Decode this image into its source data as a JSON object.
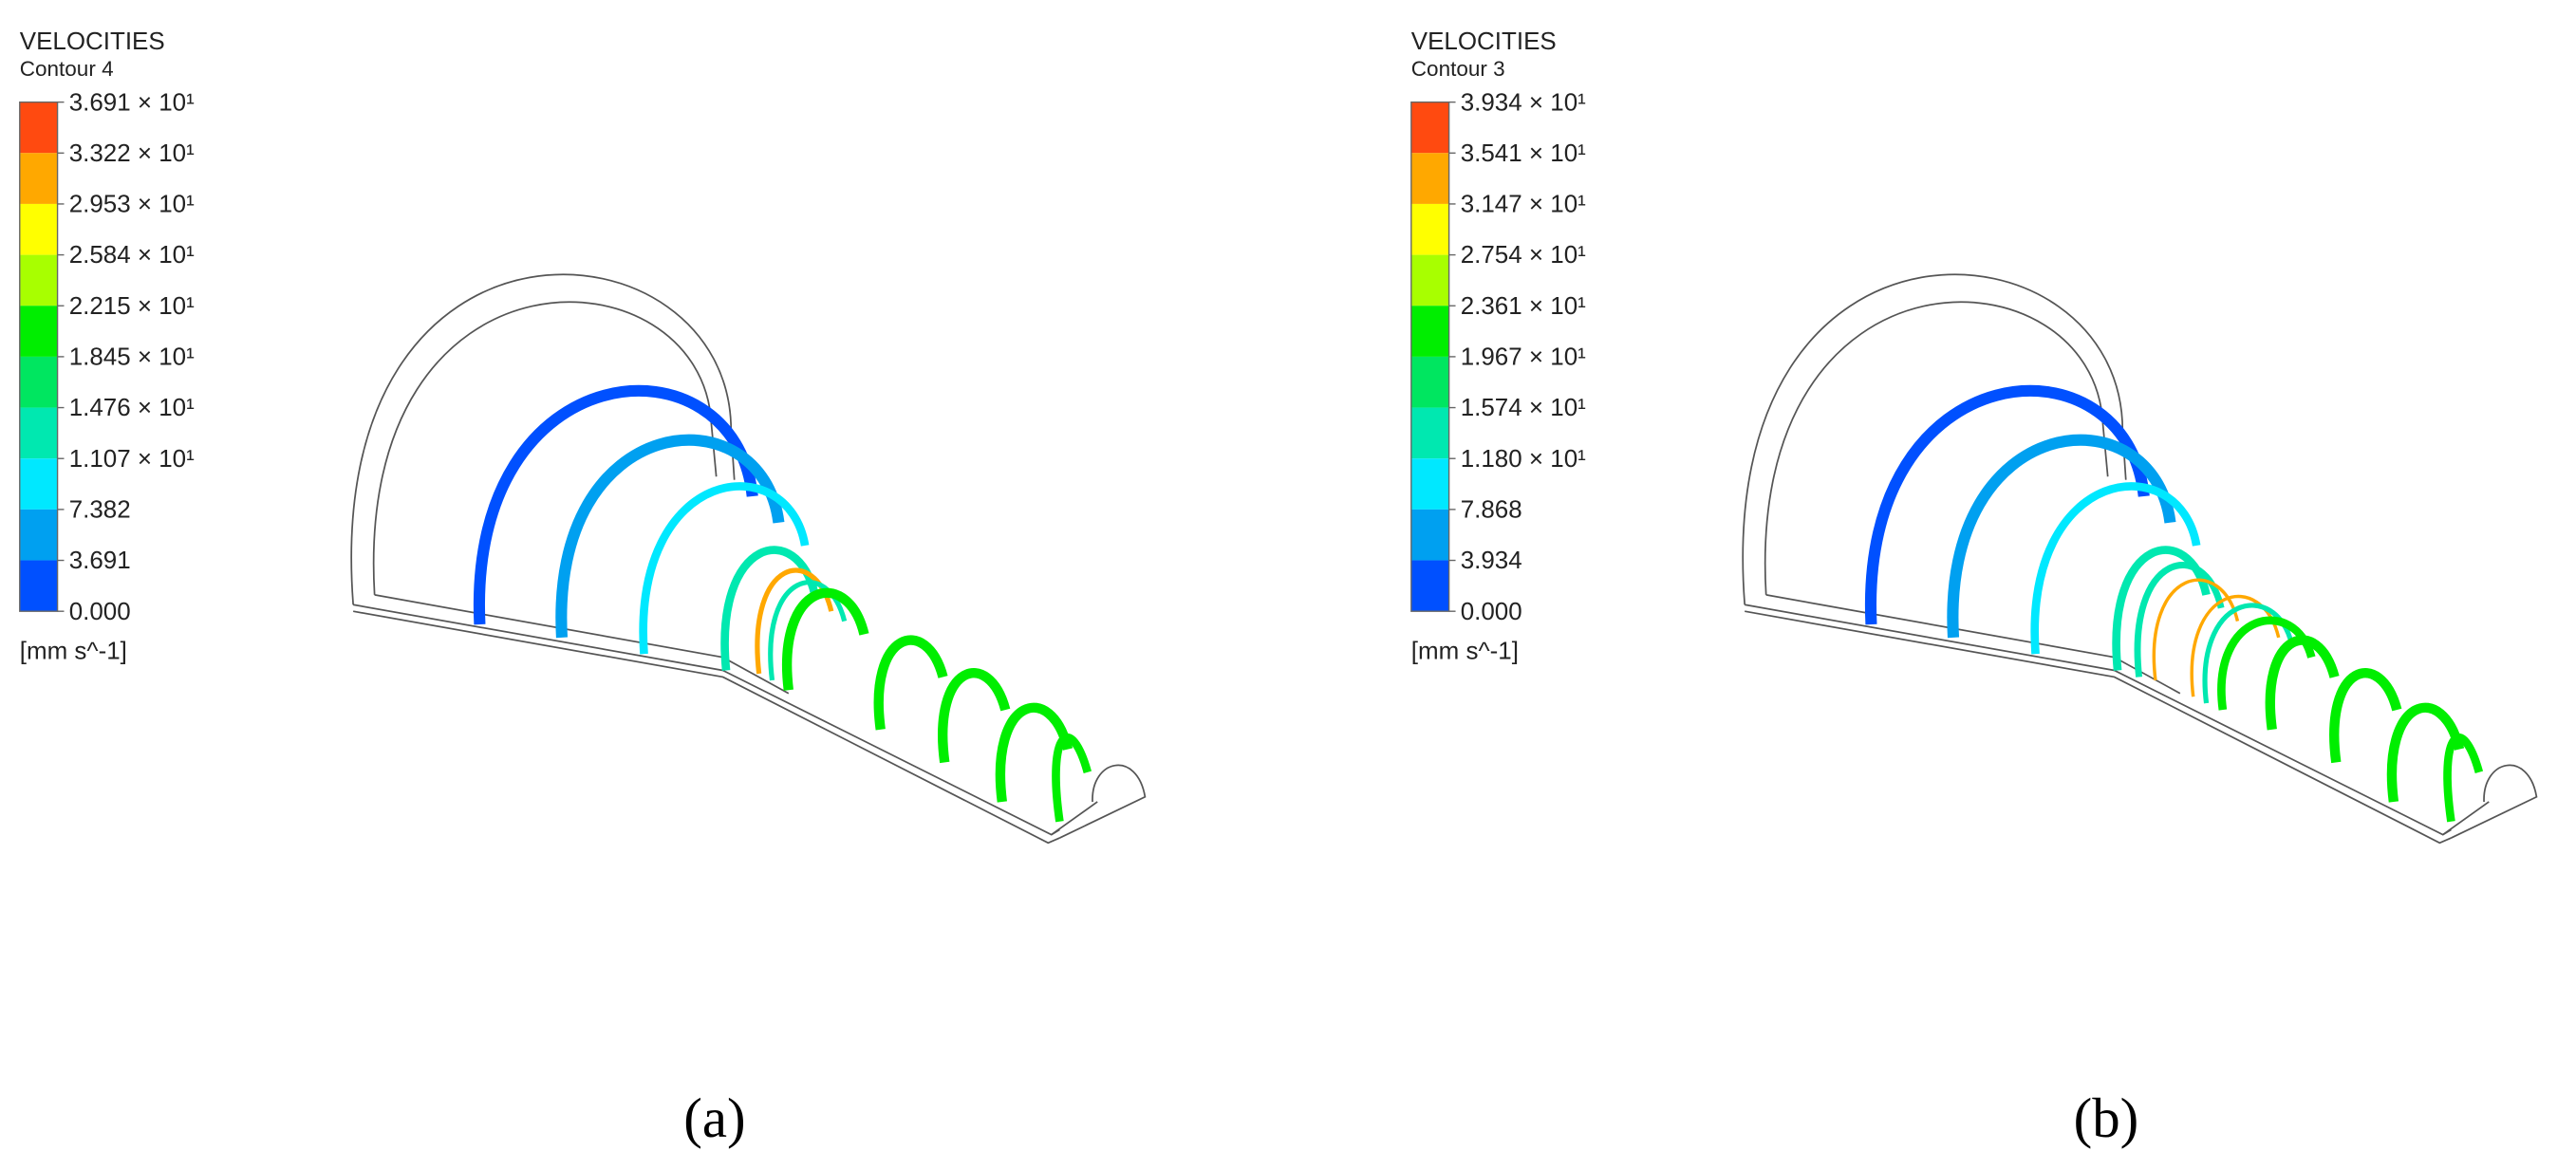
{
  "panels": [
    {
      "title": "VELOCITIES",
      "subtitle": "Contour 4",
      "legend": {
        "labels": [
          "3.691 × 10¹",
          "3.322 × 10¹",
          "2.953 × 10¹",
          "2.584 × 10¹",
          "2.215 × 10¹",
          "1.845 × 10¹",
          "1.476 × 10¹",
          "1.107 × 10¹",
          "7.382",
          "3.691",
          "0.000"
        ],
        "colors": [
          "#ff4a10",
          "#ffa800",
          "#ffff00",
          "#a8ff00",
          "#00ee00",
          "#00e660",
          "#00e8b0",
          "#00e8ff",
          "#00a0f0",
          "#0050ff",
          "#1020ff"
        ],
        "unit": "[mm s^-1]"
      },
      "caption": "(a)"
    },
    {
      "title": "VELOCITIES",
      "subtitle": "Contour 3",
      "legend": {
        "labels": [
          "3.934 × 10¹",
          "3.541 × 10¹",
          "3.147 × 10¹",
          "2.754 × 10¹",
          "2.361 × 10¹",
          "1.967 × 10¹",
          "1.574 × 10¹",
          "1.180 × 10¹",
          "7.868",
          "3.934",
          "0.000"
        ],
        "colors": [
          "#ff4a10",
          "#ffa800",
          "#ffff00",
          "#a8ff00",
          "#00ee00",
          "#00e660",
          "#00e8b0",
          "#00e8ff",
          "#00a0f0",
          "#0050ff",
          "#1020ff"
        ],
        "unit": "[mm s^-1]"
      },
      "caption": "(b)"
    }
  ]
}
